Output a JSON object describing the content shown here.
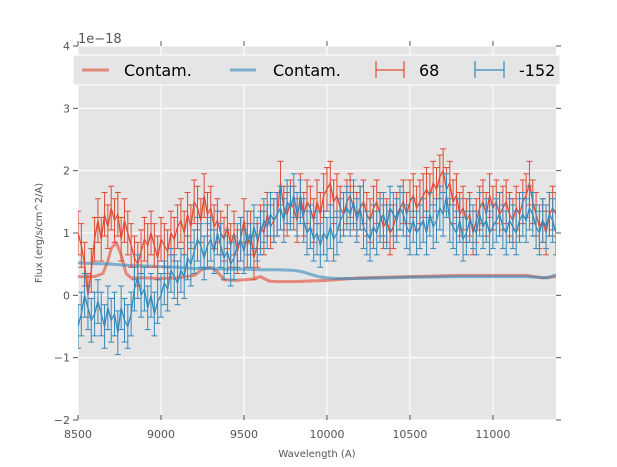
{
  "chart_data": {
    "type": "line",
    "title": "",
    "xlabel": "Wavelength (A)",
    "ylabel": "Flux (erg/s/cm^2/A)",
    "y_offset_label": "1e−18",
    "xlim": [
      8500,
      11380
    ],
    "ylim": [
      -2,
      4
    ],
    "xticks": [
      8500,
      9000,
      9500,
      10000,
      10500,
      11000
    ],
    "xtick_labels": [
      "8500",
      "9000",
      "9500",
      "10000",
      "10500",
      "11000"
    ],
    "yticks": [
      -2,
      -1,
      0,
      1,
      2,
      3,
      4
    ],
    "ytick_labels": [
      "−2",
      "−1",
      "0",
      "1",
      "2",
      "3",
      "4"
    ],
    "grid": true,
    "legend": {
      "placement": "top",
      "entries": [
        {
          "label": "Contam.",
          "series": "contam_red"
        },
        {
          "label": "Contam.",
          "series": "contam_blue"
        },
        {
          "label": "68",
          "series": "spec_red"
        },
        {
          "label": "-152",
          "series": "spec_blue"
        }
      ]
    },
    "colors": {
      "red": "#E24A33",
      "blue": "#348ABD",
      "background": "#E5E5E5",
      "grid": "#FFFFFF"
    },
    "series": [
      {
        "name": "68",
        "id": "spec_red",
        "kind": "errorbar",
        "color": "#E24A33",
        "x": [
          8500,
          8520,
          8540,
          8560,
          8580,
          8600,
          8620,
          8640,
          8660,
          8680,
          8700,
          8720,
          8740,
          8760,
          8780,
          8800,
          8820,
          8840,
          8860,
          8880,
          8900,
          8920,
          8940,
          8960,
          8980,
          9000,
          9020,
          9040,
          9060,
          9080,
          9100,
          9120,
          9140,
          9160,
          9180,
          9200,
          9220,
          9240,
          9260,
          9280,
          9300,
          9320,
          9340,
          9360,
          9380,
          9400,
          9420,
          9440,
          9460,
          9480,
          9500,
          9520,
          9540,
          9560,
          9580,
          9600,
          9620,
          9640,
          9660,
          9680,
          9700,
          9720,
          9740,
          9760,
          9780,
          9800,
          9820,
          9840,
          9860,
          9880,
          9900,
          9920,
          9940,
          9960,
          9980,
          10000,
          10020,
          10040,
          10060,
          10080,
          10100,
          10120,
          10140,
          10160,
          10180,
          10200,
          10220,
          10240,
          10260,
          10280,
          10300,
          10320,
          10340,
          10360,
          10380,
          10400,
          10420,
          10440,
          10460,
          10480,
          10500,
          10520,
          10540,
          10560,
          10580,
          10600,
          10620,
          10640,
          10660,
          10680,
          10700,
          10720,
          10740,
          10760,
          10780,
          10800,
          10820,
          10840,
          10860,
          10880,
          10900,
          10920,
          10940,
          10960,
          10980,
          11000,
          11020,
          11040,
          11060,
          11080,
          11100,
          11120,
          11140,
          11160,
          11180,
          11200,
          11220,
          11240,
          11260,
          11280,
          11300,
          11320,
          11340,
          11360,
          11380
        ],
        "y": [
          1.0,
          0.8,
          0.5,
          0.0,
          0.4,
          0.9,
          1.2,
          0.9,
          1.3,
          1.1,
          1.4,
          1.2,
          1.3,
          0.9,
          1.2,
          1.0,
          0.8,
          0.6,
          0.5,
          0.7,
          0.9,
          0.8,
          1.0,
          0.8,
          0.6,
          0.9,
          0.8,
          0.7,
          1.0,
          0.9,
          1.1,
          1.2,
          1.0,
          1.3,
          1.1,
          1.5,
          1.4,
          1.2,
          1.6,
          1.3,
          1.4,
          1.1,
          1.2,
          1.0,
          0.9,
          1.1,
          0.8,
          1.0,
          0.7,
          0.9,
          1.2,
          0.8,
          1.0,
          0.6,
          0.8,
          1.1,
          1.0,
          1.3,
          1.1,
          1.2,
          1.3,
          1.8,
          1.4,
          1.3,
          1.5,
          1.4,
          1.2,
          1.6,
          1.3,
          1.5,
          1.4,
          1.2,
          1.5,
          1.3,
          1.6,
          1.7,
          1.8,
          1.5,
          1.6,
          1.4,
          1.3,
          1.5,
          1.6,
          1.4,
          1.3,
          1.4,
          1.5,
          1.3,
          1.2,
          1.4,
          1.5,
          1.3,
          1.1,
          1.2,
          1.0,
          1.1,
          1.3,
          1.4,
          1.5,
          1.3,
          1.5,
          1.6,
          1.4,
          1.5,
          1.6,
          1.7,
          1.6,
          1.8,
          1.7,
          1.9,
          2.0,
          1.7,
          1.8,
          1.5,
          1.6,
          1.3,
          1.4,
          1.2,
          1.3,
          1.0,
          1.2,
          1.4,
          1.5,
          1.3,
          1.6,
          1.4,
          1.5,
          1.3,
          1.4,
          1.5,
          1.3,
          1.2,
          1.4,
          1.3,
          1.5,
          1.6,
          1.8,
          1.5,
          1.3,
          1.1,
          1.2,
          1.0,
          1.3,
          1.4,
          1.3
        ],
        "yerr": 0.35
      },
      {
        "name": "-152",
        "id": "spec_blue",
        "kind": "errorbar",
        "color": "#348ABD",
        "x": [
          8500,
          8520,
          8540,
          8560,
          8580,
          8600,
          8620,
          8640,
          8660,
          8680,
          8700,
          8720,
          8740,
          8760,
          8780,
          8800,
          8820,
          8840,
          8860,
          8880,
          8900,
          8920,
          8940,
          8960,
          8980,
          9000,
          9020,
          9040,
          9060,
          9080,
          9100,
          9120,
          9140,
          9160,
          9180,
          9200,
          9220,
          9240,
          9260,
          9280,
          9300,
          9320,
          9340,
          9360,
          9380,
          9400,
          9420,
          9440,
          9460,
          9480,
          9500,
          9520,
          9540,
          9560,
          9580,
          9600,
          9620,
          9640,
          9660,
          9680,
          9700,
          9720,
          9740,
          9760,
          9780,
          9800,
          9820,
          9840,
          9860,
          9880,
          9900,
          9920,
          9940,
          9960,
          9980,
          10000,
          10020,
          10040,
          10060,
          10080,
          10100,
          10120,
          10140,
          10160,
          10180,
          10200,
          10220,
          10240,
          10260,
          10280,
          10300,
          10320,
          10340,
          10360,
          10380,
          10400,
          10420,
          10440,
          10460,
          10480,
          10500,
          10520,
          10540,
          10560,
          10580,
          10600,
          10620,
          10640,
          10660,
          10680,
          10700,
          10720,
          10740,
          10760,
          10780,
          10800,
          10820,
          10840,
          10860,
          10880,
          10900,
          10920,
          10940,
          10960,
          10980,
          11000,
          11020,
          11040,
          11060,
          11080,
          11100,
          11120,
          11140,
          11160,
          11180,
          11200,
          11220,
          11240,
          11260,
          11280,
          11300,
          11320,
          11340,
          11360,
          11380
        ],
        "y": [
          -0.5,
          -0.3,
          0.0,
          -0.2,
          -0.4,
          -0.3,
          -0.1,
          -0.3,
          -0.5,
          -0.2,
          -0.4,
          -0.3,
          -0.6,
          -0.2,
          -0.4,
          -0.5,
          -0.3,
          0.1,
          0.3,
          0.0,
          0.1,
          -0.2,
          0.0,
          -0.3,
          -0.1,
          0.0,
          0.2,
          0.1,
          0.4,
          0.3,
          0.2,
          0.4,
          0.3,
          0.6,
          0.5,
          0.7,
          0.9,
          0.8,
          0.6,
          0.8,
          0.9,
          0.7,
          1.0,
          0.8,
          0.6,
          0.7,
          0.5,
          0.6,
          0.8,
          0.9,
          0.7,
          1.0,
          0.8,
          1.1,
          0.9,
          1.0,
          1.2,
          1.1,
          1.3,
          1.2,
          1.3,
          1.4,
          1.2,
          1.5,
          1.4,
          1.6,
          1.3,
          1.5,
          1.2,
          1.0,
          1.1,
          0.9,
          1.0,
          0.8,
          1.0,
          0.9,
          1.1,
          0.9,
          1.0,
          1.2,
          1.3,
          1.4,
          1.3,
          1.5,
          1.2,
          1.4,
          1.1,
          1.0,
          0.9,
          1.1,
          1.0,
          1.2,
          1.3,
          1.1,
          1.4,
          1.3,
          1.2,
          1.4,
          1.3,
          1.1,
          1.0,
          1.2,
          1.0,
          1.1,
          1.2,
          1.0,
          1.3,
          1.1,
          1.2,
          1.4,
          1.3,
          1.6,
          1.2,
          1.1,
          1.0,
          1.2,
          0.9,
          1.0,
          1.2,
          1.1,
          1.0,
          1.3,
          1.1,
          1.2,
          1.0,
          1.1,
          1.2,
          1.3,
          1.1,
          1.0,
          1.2,
          1.1,
          1.0,
          1.2,
          1.3,
          1.2,
          1.4,
          1.3,
          1.1,
          1.0,
          1.2,
          1.1,
          1.3,
          1.2,
          1.0
        ],
        "yerr": 0.35
      },
      {
        "name": "Contam.",
        "id": "contam_red",
        "kind": "line",
        "color": "#E24A33",
        "x": [
          8500,
          8550,
          8600,
          8650,
          8680,
          8700,
          8730,
          8760,
          8790,
          8820,
          8900,
          9000,
          9100,
          9200,
          9250,
          9300,
          9340,
          9380,
          9450,
          9550,
          9600,
          9650,
          9700,
          9800,
          10000,
          10200,
          10500,
          10800,
          11000,
          11200,
          11300,
          11380
        ],
        "y": [
          0.3,
          0.3,
          0.3,
          0.35,
          0.55,
          0.75,
          0.85,
          0.65,
          0.35,
          0.28,
          0.28,
          0.27,
          0.28,
          0.32,
          0.42,
          0.45,
          0.38,
          0.25,
          0.24,
          0.26,
          0.3,
          0.23,
          0.22,
          0.22,
          0.24,
          0.28,
          0.3,
          0.32,
          0.32,
          0.32,
          0.28,
          0.3
        ]
      },
      {
        "name": "Contam.",
        "id": "contam_blue",
        "kind": "line",
        "color": "#348ABD",
        "x": [
          8500,
          8600,
          8700,
          8800,
          8900,
          9000,
          9100,
          9200,
          9300,
          9400,
          9500,
          9600,
          9700,
          9800,
          9850,
          9900,
          9950,
          10000,
          10050,
          10200,
          10500,
          10800,
          11000,
          11200,
          11330,
          11380
        ],
        "y": [
          0.52,
          0.51,
          0.5,
          0.48,
          0.47,
          0.46,
          0.45,
          0.43,
          0.43,
          0.42,
          0.42,
          0.41,
          0.41,
          0.4,
          0.38,
          0.34,
          0.3,
          0.28,
          0.27,
          0.27,
          0.29,
          0.3,
          0.3,
          0.3,
          0.28,
          0.33
        ]
      }
    ]
  }
}
